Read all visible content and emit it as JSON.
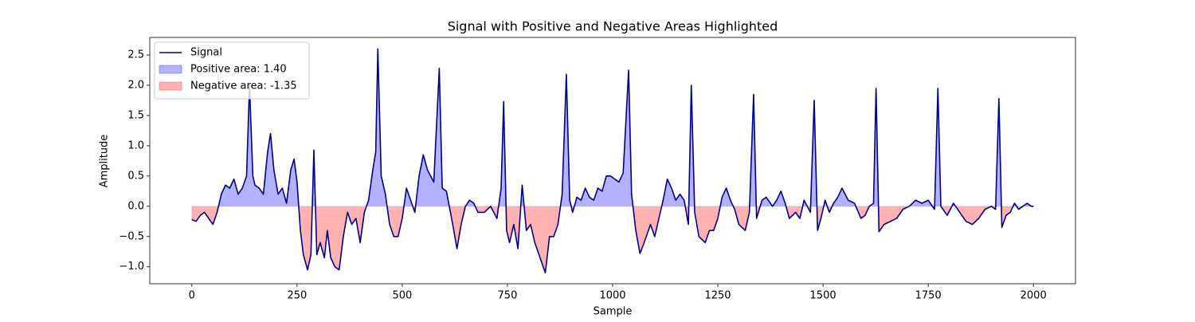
{
  "chart_data": {
    "type": "line",
    "title": "Signal with Positive and Negative Areas Highlighted",
    "x_label": "Sample",
    "y_label": "Amplitude",
    "x": [
      0,
      10,
      20,
      30,
      40,
      50,
      60,
      70,
      80,
      90,
      100,
      110,
      120,
      130,
      137,
      145,
      150,
      160,
      170,
      180,
      187,
      195,
      205,
      215,
      225,
      235,
      243,
      250,
      258,
      265,
      275,
      283,
      290,
      297,
      305,
      315,
      322,
      330,
      340,
      350,
      360,
      370,
      380,
      390,
      400,
      410,
      420,
      430,
      437,
      442,
      450,
      460,
      470,
      480,
      490,
      500,
      510,
      520,
      530,
      540,
      550,
      560,
      575,
      588,
      595,
      605,
      620,
      630,
      640,
      650,
      660,
      670,
      680,
      695,
      710,
      725,
      735,
      741,
      748,
      755,
      765,
      775,
      785,
      795,
      805,
      815,
      830,
      840,
      850,
      860,
      870,
      880,
      890,
      898,
      905,
      915,
      925,
      935,
      945,
      955,
      965,
      975,
      985,
      995,
      1005,
      1015,
      1025,
      1038,
      1045,
      1055,
      1065,
      1075,
      1090,
      1100,
      1110,
      1120,
      1130,
      1140,
      1150,
      1160,
      1170,
      1180,
      1187,
      1195,
      1205,
      1220,
      1230,
      1240,
      1250,
      1260,
      1270,
      1280,
      1290,
      1300,
      1315,
      1325,
      1335,
      1342,
      1355,
      1365,
      1380,
      1390,
      1400,
      1410,
      1420,
      1435,
      1445,
      1455,
      1470,
      1479,
      1487,
      1495,
      1505,
      1515,
      1525,
      1535,
      1545,
      1560,
      1575,
      1590,
      1600,
      1610,
      1620,
      1626,
      1633,
      1645,
      1660,
      1675,
      1690,
      1705,
      1720,
      1735,
      1750,
      1765,
      1773,
      1780,
      1795,
      1810,
      1825,
      1840,
      1855,
      1870,
      1885,
      1900,
      1910,
      1918,
      1925,
      1935,
      1945,
      1955,
      1965,
      1975,
      1985,
      1995,
      2000
    ],
    "series": [
      {
        "name": "Signal",
        "color": "#00008b",
        "values": [
          -0.22,
          -0.25,
          -0.15,
          -0.1,
          -0.2,
          -0.3,
          -0.1,
          0.2,
          0.35,
          0.3,
          0.45,
          0.2,
          0.3,
          0.5,
          2.0,
          0.5,
          0.35,
          0.3,
          0.2,
          0.9,
          1.2,
          0.6,
          0.2,
          0.3,
          0.05,
          0.6,
          0.78,
          0.4,
          -0.4,
          -0.8,
          -1.05,
          -0.8,
          0.93,
          -0.8,
          -0.6,
          -0.85,
          -0.4,
          -0.85,
          -1.0,
          -1.05,
          -0.5,
          -0.1,
          -0.3,
          -0.2,
          -0.6,
          -0.1,
          0.1,
          0.6,
          0.9,
          2.6,
          0.5,
          0.2,
          -0.3,
          -0.5,
          -0.5,
          -0.2,
          0.3,
          0.1,
          -0.1,
          0.5,
          0.85,
          0.6,
          0.4,
          2.28,
          0.3,
          0.25,
          -0.3,
          -0.7,
          -0.3,
          0,
          0.1,
          0.05,
          -0.1,
          -0.1,
          0,
          -0.2,
          0.3,
          1.73,
          -0.4,
          -0.6,
          -0.3,
          -0.7,
          0.35,
          -0.4,
          -0.3,
          -0.6,
          -0.9,
          -1.1,
          -0.5,
          -0.5,
          -0.3,
          0.2,
          2.18,
          0.1,
          -0.1,
          0.15,
          0.1,
          0.3,
          0.15,
          0.1,
          0.3,
          0.25,
          0.5,
          0.5,
          0.45,
          0.4,
          0.55,
          2.25,
          0.2,
          -0.4,
          -0.78,
          -0.6,
          -0.3,
          -0.5,
          -0.2,
          0.1,
          0.45,
          0.3,
          0.1,
          0.2,
          0.1,
          -0.3,
          2.0,
          -0.1,
          -0.5,
          -0.6,
          -0.4,
          -0.4,
          -0.2,
          0.15,
          0.3,
          0.1,
          -0.05,
          -0.3,
          -0.4,
          -0.1,
          1.85,
          -0.2,
          0.1,
          0.15,
          0,
          0.1,
          0.25,
          0.05,
          -0.2,
          -0.1,
          -0.2,
          0.1,
          -0.1,
          1.75,
          -0.4,
          -0.2,
          0.1,
          -0.1,
          0.05,
          0.15,
          0.3,
          0.1,
          0.05,
          -0.2,
          -0.15,
          0,
          0.05,
          1.95,
          -0.42,
          -0.3,
          -0.25,
          -0.2,
          -0.05,
          0,
          0.1,
          0.05,
          0.1,
          -0.05,
          1.95,
          0,
          -0.15,
          0.05,
          -0.1,
          -0.25,
          -0.3,
          -0.2,
          -0.05,
          0,
          -0.05,
          1.78,
          -0.35,
          -0.15,
          -0.1,
          0.05,
          -0.05,
          0,
          0.05,
          0,
          0
        ]
      }
    ],
    "fills": [
      {
        "name": "Positive area: 1.40",
        "color": "#0000ff",
        "alpha": 0.3,
        "side": "positive"
      },
      {
        "name": "Negative area: -1.35",
        "color": "#ff0000",
        "alpha": 0.3,
        "side": "negative"
      }
    ],
    "xlim": [
      -100,
      2100
    ],
    "ylim": [
      -1.28,
      2.79
    ],
    "xticks": [
      0,
      250,
      500,
      750,
      1000,
      1250,
      1500,
      1750,
      2000
    ],
    "yticks": [
      {
        "value": -1.0,
        "label": "−1.0"
      },
      {
        "value": -0.5,
        "label": "−0.5"
      },
      {
        "value": 0,
        "label": "0.0"
      },
      {
        "value": 0.5,
        "label": "0.5"
      },
      {
        "value": 1.0,
        "label": "1.0"
      },
      {
        "value": 1.5,
        "label": "1.5"
      },
      {
        "value": 2.0,
        "label": "2.0"
      },
      {
        "value": 2.5,
        "label": "2.5"
      }
    ],
    "grid": false,
    "legend": "upper left"
  }
}
